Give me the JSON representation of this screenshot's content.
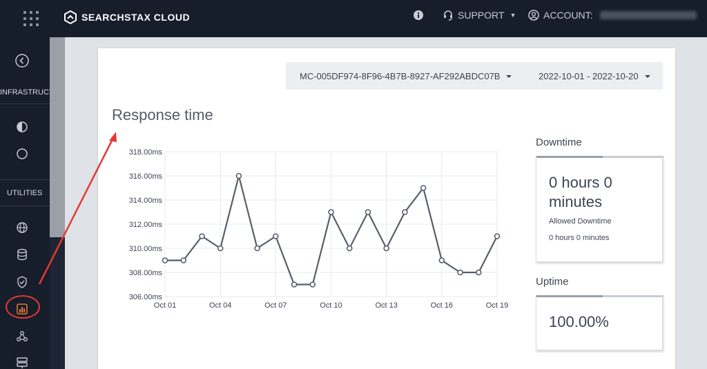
{
  "header": {
    "brand": "SEARCHSTAX CLOUD",
    "support_label": "SUPPORT",
    "account_label": "ACCOUNT:"
  },
  "sidebar": {
    "infrastructure_label": "INFRASTRUCTURE",
    "utilities_label": "UTILITIES",
    "items": [
      {
        "icon": "collapse-icon"
      },
      {
        "icon": "half-circle-icon"
      },
      {
        "icon": "circle-icon"
      },
      {
        "icon": "globe-icon"
      },
      {
        "icon": "database-icon"
      },
      {
        "icon": "shield-check-icon"
      },
      {
        "icon": "bar-chart-icon",
        "active": true
      },
      {
        "icon": "network-icon"
      },
      {
        "icon": "server-icon"
      }
    ],
    "accent_color": "#e8772e",
    "highlight_color": "#e53935"
  },
  "selectors": {
    "deployment": "MC-005DF974-8F96-4B7B-8927-AF292ABDC07B",
    "date_range": "2022-10-01 - 2022-10-20"
  },
  "chart_title": "Response time",
  "chart_data": {
    "type": "line",
    "x": [
      "Oct 01",
      "Oct 02",
      "Oct 03",
      "Oct 04",
      "Oct 05",
      "Oct 06",
      "Oct 07",
      "Oct 08",
      "Oct 09",
      "Oct 10",
      "Oct 11",
      "Oct 12",
      "Oct 13",
      "Oct 14",
      "Oct 15",
      "Oct 16",
      "Oct 17",
      "Oct 18",
      "Oct 19"
    ],
    "xticks": [
      "Oct 01",
      "Oct 04",
      "Oct 07",
      "Oct 10",
      "Oct 13",
      "Oct 16",
      "Oct 19"
    ],
    "values": [
      309,
      309,
      311,
      310,
      316,
      310,
      311,
      307,
      307,
      313,
      310,
      313,
      310,
      313,
      315,
      309,
      308,
      308,
      311
    ],
    "yticks": [
      "318.00ms",
      "316.00ms",
      "314.00ms",
      "312.00ms",
      "310.00ms",
      "308.00ms",
      "306.00ms"
    ],
    "ylim": [
      306,
      318
    ],
    "grid": true,
    "line_color": "#565e6c"
  },
  "downtime": {
    "label": "Downtime",
    "value": "0 hours 0 minutes",
    "allowed_label": "Allowed Downtime",
    "allowed_value": "0 hours 0 minutes"
  },
  "uptime": {
    "label": "Uptime",
    "value": "100.00%"
  }
}
